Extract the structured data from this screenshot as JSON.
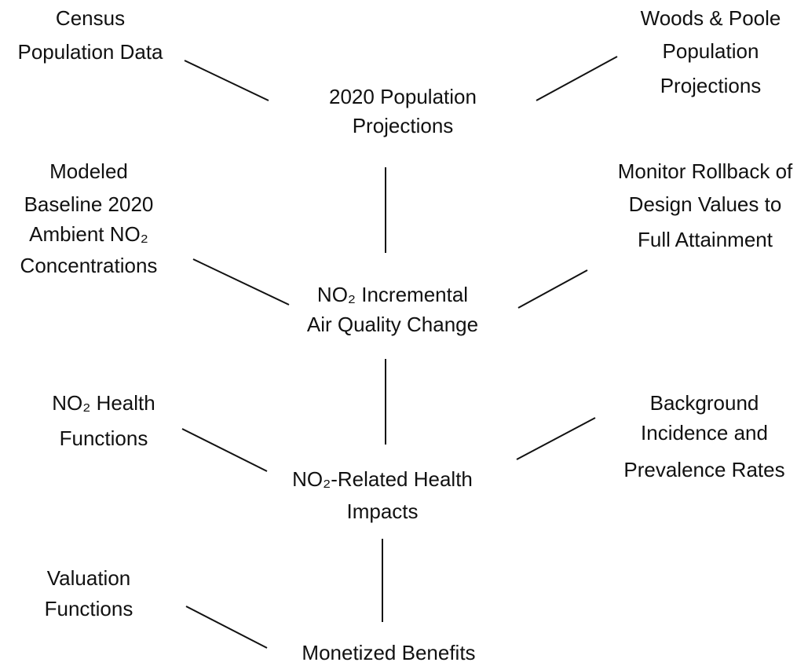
{
  "nodes": [
    {
      "lines": [
        "Census",
        "Population Data"
      ]
    },
    {
      "lines": [
        "Woods & Poole",
        "Population",
        "Projections"
      ]
    },
    {
      "lines": [
        "2020 Population",
        "Projections"
      ]
    },
    {
      "lines": [
        "Modeled",
        "Baseline 2020",
        "Ambient NO₂",
        "Concentrations"
      ]
    },
    {
      "lines": [
        "Monitor Rollback of",
        "Design Values to",
        "Full Attainment"
      ]
    },
    {
      "lines": [
        "NO₂ Incremental",
        "Air Quality Change"
      ]
    },
    {
      "lines": [
        "NO₂ Health",
        "Functions"
      ]
    },
    {
      "lines": [
        "Background",
        "Incidence and",
        "Prevalence Rates"
      ]
    },
    {
      "lines": [
        "NO₂-Related Health",
        "Impacts"
      ]
    },
    {
      "lines": [
        "Valuation",
        "Functions"
      ]
    },
    {
      "lines": [
        "Monetized Benefits"
      ]
    }
  ]
}
